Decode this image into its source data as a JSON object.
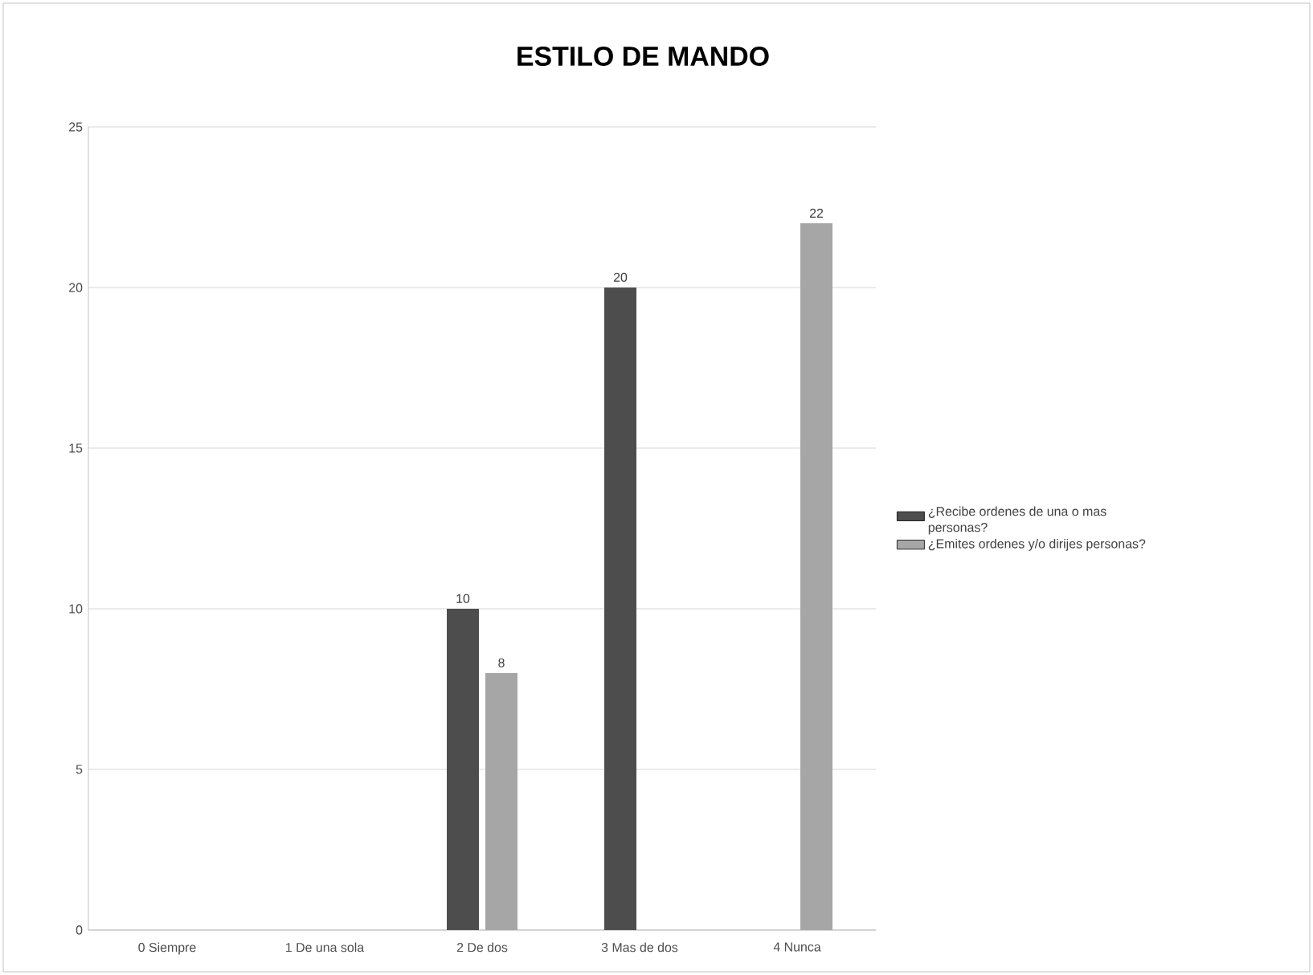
{
  "chart_data": {
    "type": "bar",
    "title": "ESTILO DE MANDO",
    "categories": [
      "0 Siempre",
      "1 De una sola",
      "2 De  dos",
      "3 Mas de dos",
      "4 Nunca"
    ],
    "series": [
      {
        "name": "¿Recibe ordenes de una o mas personas?",
        "color": "#4d4d4d",
        "values": [
          null,
          null,
          10,
          20,
          null
        ]
      },
      {
        "name": "¿Emites ordenes y/o dirijes personas?",
        "color": "#a6a6a6",
        "values": [
          null,
          null,
          8,
          null,
          22
        ]
      }
    ],
    "ylim": [
      0,
      25
    ],
    "yticks": [
      0,
      5,
      10,
      15,
      20,
      25
    ],
    "grid": "y",
    "legend": "right",
    "data_labels": true
  }
}
